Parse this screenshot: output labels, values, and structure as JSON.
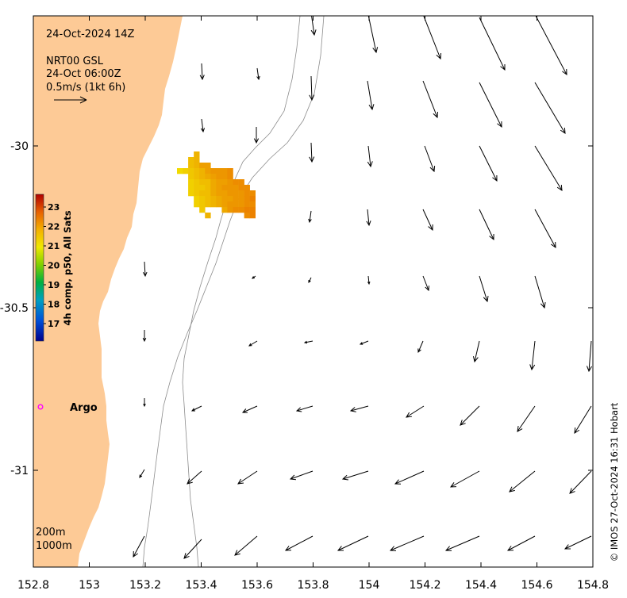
{
  "map": {
    "header": {
      "datetime": "24-Oct-2024 14Z",
      "product": "NRT00 GSL",
      "velocity_time": "24-Oct 06:00Z",
      "arrow_scale_label": "0.5m/s (1kt 6h)"
    },
    "x_axis": {
      "ticks": [
        "152.8",
        "153",
        "153.2",
        "153.4",
        "153.6",
        "153.8",
        "154",
        "154.2",
        "154.4",
        "154.6",
        "154.8"
      ],
      "range": [
        152.8,
        154.8
      ]
    },
    "y_axis": {
      "ticks": [
        "-30",
        "-30.5",
        "-31"
      ],
      "range": [
        -31.3,
        -29.59
      ]
    },
    "colorbar": {
      "title": "4h comp, p50, All Sats",
      "ticks": [
        "17",
        "18",
        "19",
        "20",
        "21",
        "22",
        "23"
      ]
    },
    "argo": {
      "label": "Argo",
      "lon": 152.865,
      "lat": -30.82
    },
    "isobaths": [
      "200m",
      "1000m"
    ],
    "credit": "© IMOS 27-Oct-2024 16:31 Hobart",
    "colors": {
      "land": "#fdca96",
      "argo_marker": "#ff00ff",
      "isobath": "#8c8c8c",
      "sst_low": "#f0e000",
      "sst_high": "#ec8000"
    }
  }
}
